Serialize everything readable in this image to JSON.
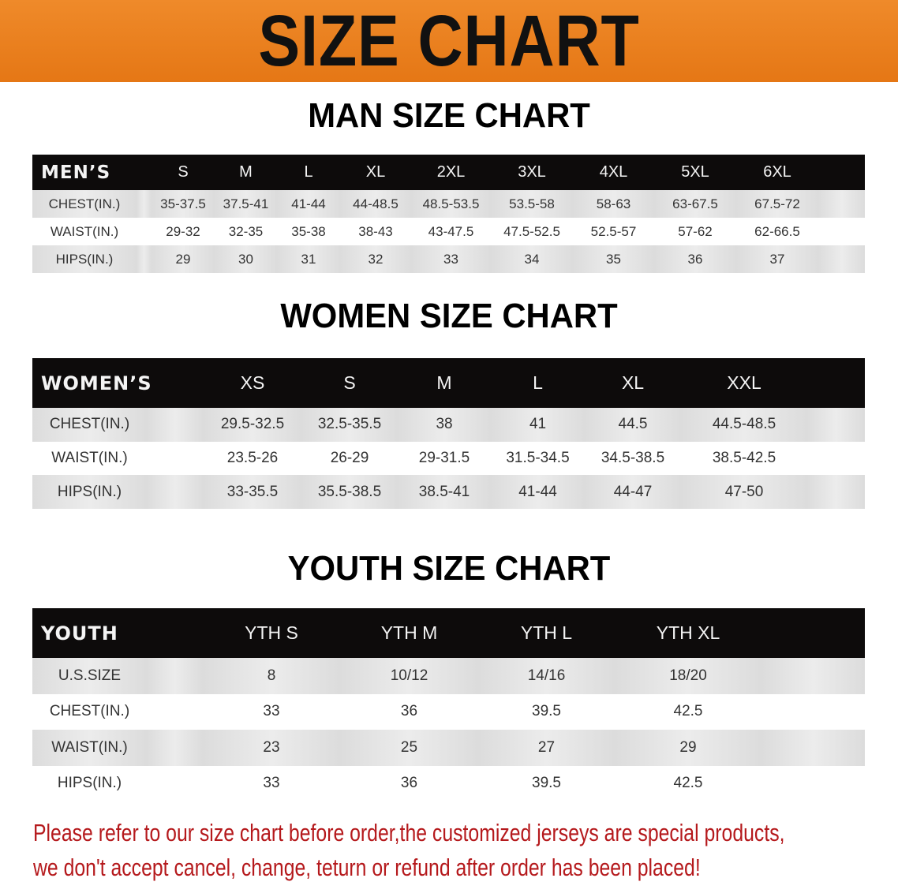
{
  "banner_title": "SIZE CHART",
  "men": {
    "title": "MAN SIZE CHART",
    "header": "MEN’S",
    "sizes": [
      "S",
      "M",
      "L",
      "XL",
      "2XL",
      "3XL",
      "4XL",
      "5XL",
      "6XL"
    ],
    "rows": [
      {
        "label": "CHEST(IN.)",
        "values": [
          "35-37.5",
          "37.5-41",
          "41-44",
          "44-48.5",
          "48.5-53.5",
          "53.5-58",
          "58-63",
          "63-67.5",
          "67.5-72"
        ]
      },
      {
        "label": "WAIST(IN.)",
        "values": [
          "29-32",
          "32-35",
          "35-38",
          "38-43",
          "43-47.5",
          "47.5-52.5",
          "52.5-57",
          "57-62",
          "62-66.5"
        ]
      },
      {
        "label": "HIPS(IN.)",
        "values": [
          "29",
          "30",
          "31",
          "32",
          "33",
          "34",
          "35",
          "36",
          "37"
        ]
      }
    ]
  },
  "women": {
    "title": "WOMEN SIZE CHART",
    "header": "WOMEN’S",
    "sizes": [
      "XS",
      "S",
      "M",
      "L",
      "XL",
      "XXL"
    ],
    "rows": [
      {
        "label": "CHEST(IN.)",
        "values": [
          "29.5-32.5",
          "32.5-35.5",
          "38",
          "41",
          "44.5",
          "44.5-48.5"
        ]
      },
      {
        "label": "WAIST(IN.)",
        "values": [
          "23.5-26",
          "26-29",
          "29-31.5",
          "31.5-34.5",
          "34.5-38.5",
          "38.5-42.5"
        ]
      },
      {
        "label": "HIPS(IN.)",
        "values": [
          "33-35.5",
          "35.5-38.5",
          "38.5-41",
          "41-44",
          "44-47",
          "47-50"
        ]
      }
    ]
  },
  "youth": {
    "title": "YOUTH SIZE CHART",
    "header": "YOUTH",
    "sizes": [
      "YTH S",
      "YTH M",
      "YTH L",
      "YTH XL"
    ],
    "rows": [
      {
        "label": "U.S.SIZE",
        "values": [
          "8",
          "10/12",
          "14/16",
          "18/20"
        ]
      },
      {
        "label": "CHEST(IN.)",
        "values": [
          "33",
          "36",
          "39.5",
          "42.5"
        ]
      },
      {
        "label": "WAIST(IN.)",
        "values": [
          "23",
          "25",
          "27",
          "29"
        ]
      },
      {
        "label": "HIPS(IN.)",
        "values": [
          "33",
          "36",
          "39.5",
          "42.5"
        ]
      }
    ]
  },
  "notice": {
    "line1": "Please refer to our size chart before order,the customized jerseys are special products,",
    "line2": "we don't accept cancel, change, teturn or refund after order has been placed!"
  },
  "colors": {
    "banner": "#e97d1c",
    "header_row": "#0d0b0b",
    "notice": "#b5191c"
  }
}
